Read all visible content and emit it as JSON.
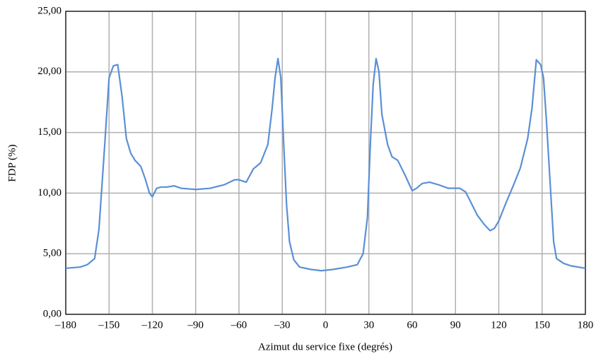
{
  "chart_data": {
    "type": "line",
    "x_label": "Azimut du service fixe (degrés)",
    "y_label": "FDP (%)",
    "xlim": [
      -180,
      180
    ],
    "ylim": [
      0,
      25
    ],
    "xticks": [
      {
        "value": -180,
        "label": "–180"
      },
      {
        "value": -150,
        "label": "–150"
      },
      {
        "value": -120,
        "label": "–120"
      },
      {
        "value": -90,
        "label": "–90"
      },
      {
        "value": -60,
        "label": "–60"
      },
      {
        "value": -30,
        "label": "–30"
      },
      0,
      30,
      60,
      90,
      120,
      150,
      180
    ],
    "yticks": [
      {
        "value": 0,
        "label": "0,00"
      },
      {
        "value": 5,
        "label": "5,00"
      },
      {
        "value": 10,
        "label": "10,00"
      },
      {
        "value": 15,
        "label": "15,00"
      },
      {
        "value": 20,
        "label": "20,00"
      },
      {
        "value": 25,
        "label": "25,00"
      }
    ],
    "grid": true,
    "series": [
      {
        "color": "#5b8fd6",
        "x": [
          -180,
          -170,
          -165,
          -160,
          -157,
          -153,
          -150,
          -147,
          -144,
          -141,
          -138,
          -135,
          -132,
          -128,
          -125,
          -122,
          -120,
          -117,
          -114,
          -110,
          -105,
          -100,
          -90,
          -80,
          -70,
          -63,
          -60,
          -55,
          -50,
          -45,
          -40,
          -37,
          -35,
          -33,
          -31,
          -29,
          -27,
          -25,
          -22,
          -18,
          -10,
          -3,
          5,
          15,
          22,
          26,
          29,
          31,
          33,
          35,
          37,
          39,
          43,
          46,
          50,
          55,
          60,
          63,
          67,
          72,
          78,
          85,
          93,
          97,
          100,
          105,
          110,
          114,
          117,
          120,
          125,
          130,
          135,
          140,
          143,
          146,
          149,
          151,
          153,
          156,
          158,
          160,
          165,
          170,
          180
        ],
        "values": [
          3.8,
          3.9,
          4.1,
          4.6,
          7,
          14,
          19.5,
          20.5,
          20.6,
          18,
          14.5,
          13.3,
          12.7,
          12.2,
          11.2,
          10,
          9.7,
          10.4,
          10.5,
          10.5,
          10.6,
          10.4,
          10.3,
          10.4,
          10.7,
          11.1,
          11.1,
          10.9,
          12,
          12.5,
          14,
          17,
          19.5,
          21.1,
          19.5,
          14,
          9,
          6,
          4.5,
          3.9,
          3.7,
          3.6,
          3.7,
          3.9,
          4.1,
          5,
          8,
          14,
          19,
          21.1,
          20,
          16.5,
          14,
          13,
          12.7,
          11.5,
          10.2,
          10.4,
          10.8,
          10.9,
          10.7,
          10.4,
          10.4,
          10.1,
          9.4,
          8.2,
          7.4,
          6.9,
          7.1,
          7.7,
          9.2,
          10.6,
          12.1,
          14.5,
          17,
          21,
          20.6,
          19.5,
          16,
          10,
          6,
          4.6,
          4.2,
          4,
          3.8
        ]
      }
    ]
  }
}
